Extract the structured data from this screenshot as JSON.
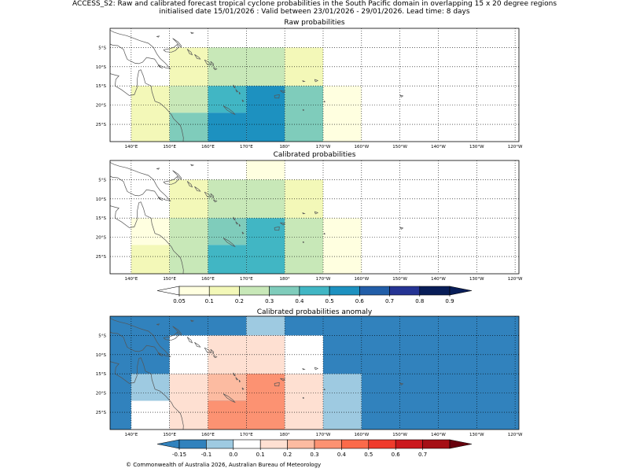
{
  "header": {
    "title_line1": "ACCESS_S2: Raw and calibrated forecast tropical cyclone probabilities in the South Pacific domain in overlapping 15 x 20 degree regions",
    "title_line2": "initialised date 15/01/2026 :  Valid between 23/01/2026 - 29/01/2026. Lead time: 8 days"
  },
  "footer": {
    "copyright": "© Commonwealth of Australia 2026, Australian Bureau of Meteorology"
  },
  "map_axes": {
    "lon_ticks": [
      {
        "lon": 140,
        "label": "140°E"
      },
      {
        "lon": 150,
        "label": "150°E"
      },
      {
        "lon": 160,
        "label": "160°E"
      },
      {
        "lon": 170,
        "label": "170°E"
      },
      {
        "lon": 180,
        "label": "180°"
      },
      {
        "lon": 190,
        "label": "170°W"
      },
      {
        "lon": 200,
        "label": "160°W"
      },
      {
        "lon": 210,
        "label": "150°W"
      },
      {
        "lon": 220,
        "label": "140°W"
      },
      {
        "lon": 230,
        "label": "130°W"
      },
      {
        "lon": 240,
        "label": "120°W"
      }
    ],
    "lat_ticks": [
      {
        "lat": -5,
        "label": "5°S"
      },
      {
        "lat": -10,
        "label": "10°S"
      },
      {
        "lat": -15,
        "label": "15°S"
      },
      {
        "lat": -20,
        "label": "20°S"
      },
      {
        "lat": -25,
        "label": "25°S"
      }
    ],
    "lon_range": [
      134.5,
      241
    ],
    "lat_range": [
      -29.5,
      0
    ]
  },
  "panels": [
    {
      "title": "Raw probabilities",
      "background": "#ffffff",
      "cells": [
        {
          "lon": [
            150,
            160
          ],
          "lat": [
            -15,
            -5
          ],
          "color": "#f3f8b8"
        },
        {
          "lon": [
            160,
            180
          ],
          "lat": [
            -15,
            -5
          ],
          "color": "#c8e8b8"
        },
        {
          "lon": [
            180,
            190
          ],
          "lat": [
            -15,
            -5
          ],
          "color": "#f3f8b8"
        },
        {
          "lon": [
            140,
            150
          ],
          "lat": [
            -30,
            -15
          ],
          "color": "#f3f8b8"
        },
        {
          "lon": [
            150,
            160
          ],
          "lat": [
            -22,
            -15
          ],
          "color": "#c8e8b8"
        },
        {
          "lon": [
            150,
            160
          ],
          "lat": [
            -30,
            -22
          ],
          "color": "#7fccbb"
        },
        {
          "lon": [
            160,
            170
          ],
          "lat": [
            -22,
            -15
          ],
          "color": "#41b6c4"
        },
        {
          "lon": [
            160,
            170
          ],
          "lat": [
            -30,
            -22
          ],
          "color": "#1d91c0"
        },
        {
          "lon": [
            170,
            180
          ],
          "lat": [
            -30,
            -15
          ],
          "color": "#1d91c0"
        },
        {
          "lon": [
            180,
            190
          ],
          "lat": [
            -30,
            -15
          ],
          "color": "#7fccbb"
        },
        {
          "lon": [
            190,
            200
          ],
          "lat": [
            -30,
            -15
          ],
          "color": "#ffffe0"
        }
      ]
    },
    {
      "title": "Calibrated probabilities",
      "background": "#ffffff",
      "cells": [
        {
          "lon": [
            170,
            180
          ],
          "lat": [
            -5,
            0
          ],
          "color": "#ffffe0"
        },
        {
          "lon": [
            150,
            160
          ],
          "lat": [
            -15,
            -5
          ],
          "color": "#f3f8b8"
        },
        {
          "lon": [
            160,
            180
          ],
          "lat": [
            -15,
            -5
          ],
          "color": "#c8e8b8"
        },
        {
          "lon": [
            180,
            190
          ],
          "lat": [
            -15,
            -5
          ],
          "color": "#f3f8b8"
        },
        {
          "lon": [
            140,
            150
          ],
          "lat": [
            -22,
            -15
          ],
          "color": "#ffffe0"
        },
        {
          "lon": [
            140,
            150
          ],
          "lat": [
            -30,
            -22
          ],
          "color": "#f3f8b8"
        },
        {
          "lon": [
            150,
            160
          ],
          "lat": [
            -30,
            -15
          ],
          "color": "#c8e8b8"
        },
        {
          "lon": [
            160,
            170
          ],
          "lat": [
            -22,
            -15
          ],
          "color": "#7fccbb"
        },
        {
          "lon": [
            160,
            170
          ],
          "lat": [
            -30,
            -22
          ],
          "color": "#41b6c4"
        },
        {
          "lon": [
            170,
            180
          ],
          "lat": [
            -30,
            -15
          ],
          "color": "#41b6c4"
        },
        {
          "lon": [
            180,
            190
          ],
          "lat": [
            -30,
            -15
          ],
          "color": "#c8e8b8"
        },
        {
          "lon": [
            190,
            200
          ],
          "lat": [
            -30,
            -15
          ],
          "color": "#ffffe0"
        }
      ]
    },
    {
      "title": "Calibrated probabilities anomaly",
      "background": "#3182bd",
      "cells": [
        {
          "lon": [
            170,
            180
          ],
          "lat": [
            -5,
            0
          ],
          "color": "#9ecae1"
        },
        {
          "lon": [
            150,
            160
          ],
          "lat": [
            -15,
            -5
          ],
          "color": "#ffffff"
        },
        {
          "lon": [
            160,
            180
          ],
          "lat": [
            -15,
            -5
          ],
          "color": "#fee0d2"
        },
        {
          "lon": [
            180,
            190
          ],
          "lat": [
            -15,
            -5
          ],
          "color": "#ffffff"
        },
        {
          "lon": [
            140,
            150
          ],
          "lat": [
            -22,
            -15
          ],
          "color": "#9ecae1"
        },
        {
          "lon": [
            140,
            150
          ],
          "lat": [
            -30,
            -22
          ],
          "color": "#ffffff"
        },
        {
          "lon": [
            150,
            160
          ],
          "lat": [
            -30,
            -15
          ],
          "color": "#fee0d2"
        },
        {
          "lon": [
            160,
            170
          ],
          "lat": [
            -22,
            -15
          ],
          "color": "#fcbba1"
        },
        {
          "lon": [
            160,
            170
          ],
          "lat": [
            -30,
            -22
          ],
          "color": "#fc9272"
        },
        {
          "lon": [
            170,
            180
          ],
          "lat": [
            -30,
            -15
          ],
          "color": "#fc9272"
        },
        {
          "lon": [
            180,
            190
          ],
          "lat": [
            -30,
            -15
          ],
          "color": "#fee0d2"
        },
        {
          "lon": [
            190,
            200
          ],
          "lat": [
            -30,
            -15
          ],
          "color": "#9ecae1"
        }
      ]
    }
  ],
  "colorbars": [
    {
      "name": "probability-colorbar",
      "under_color": "#ffffff",
      "colors": [
        "#ffffe0",
        "#f3f8b8",
        "#c8e8b8",
        "#7fccbb",
        "#41b6c4",
        "#1d91c0",
        "#225ea8",
        "#253494",
        "#081d58"
      ],
      "over_color": "#081d58",
      "labels": [
        "0.05",
        "0.1",
        "0.2",
        "0.3",
        "0.4",
        "0.5",
        "0.6",
        "0.7",
        "0.8",
        "0.9"
      ]
    },
    {
      "name": "anomaly-colorbar",
      "under_color": "#3182bd",
      "colors": [
        "#3182bd",
        "#9ecae1",
        "#ffffff",
        "#fee0d2",
        "#fcbba1",
        "#fc9272",
        "#fb6a4a",
        "#ef3b2c",
        "#cb181d",
        "#a50f15"
      ],
      "over_color": "#67000d",
      "labels": [
        "-0.15",
        "-0.1",
        "0.0",
        "0.1",
        "0.2",
        "0.3",
        "0.4",
        "0.5",
        "0.6",
        "0.7"
      ]
    }
  ]
}
